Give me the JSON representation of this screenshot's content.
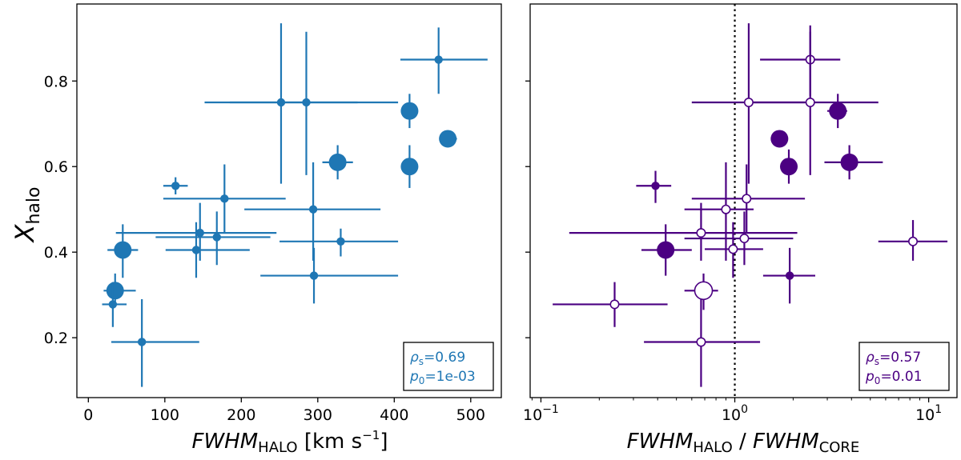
{
  "colors": {
    "left": "#1f77b4",
    "right": "#4b0082",
    "frame": "#000000"
  },
  "chart_data": [
    {
      "type": "scatter",
      "name": "left-panel",
      "xlabel": "FWHM_HALO [km s^-1]",
      "xlabel_main": "FWHM",
      "xlabel_sub": "HALO",
      "xlabel_unit_pre": " [km s",
      "xlabel_unit_sup": "−1",
      "xlabel_unit_post": "]",
      "ylabel": "X_halo",
      "ylabel_main": "X",
      "ylabel_sub": "halo",
      "xscale": "linear",
      "xlim": [
        -15,
        540
      ],
      "ylim": [
        0.06,
        0.98
      ],
      "xticks": [
        0,
        100,
        200,
        300,
        400,
        500
      ],
      "xtick_labels": [
        "0",
        "100",
        "200",
        "300",
        "400",
        "500"
      ],
      "yticks": [
        0.2,
        0.4,
        0.6,
        0.8
      ],
      "ytick_labels": [
        "0.2",
        "0.4",
        "0.6",
        "0.8"
      ],
      "legend_position": "bottom-right",
      "stats": {
        "rho_symbol": "ρ",
        "rho_sub": "s",
        "rho_value": "=0.69",
        "p_symbol": "p",
        "p_sub": "0",
        "p_value": "=1e-03"
      },
      "points": [
        {
          "x": 458,
          "y": 0.85,
          "xlo": 408,
          "xhi": 522,
          "ylo": 0.77,
          "yhi": 0.925,
          "size": "small",
          "fill": true
        },
        {
          "x": 252,
          "y": 0.75,
          "xlo": 152,
          "xhi": 352,
          "ylo": 0.56,
          "yhi": 0.935,
          "size": "small",
          "fill": true
        },
        {
          "x": 285,
          "y": 0.75,
          "xlo": 185,
          "xhi": 405,
          "ylo": 0.58,
          "yhi": 0.915,
          "size": "small",
          "fill": true
        },
        {
          "x": 420,
          "y": 0.73,
          "xlo": 410,
          "xhi": 430,
          "ylo": 0.69,
          "yhi": 0.77,
          "size": "large",
          "fill": true
        },
        {
          "x": 470,
          "y": 0.665,
          "xlo": 460,
          "xhi": 482,
          "ylo": 0.655,
          "yhi": 0.675,
          "size": "large",
          "fill": true
        },
        {
          "x": 326,
          "y": 0.61,
          "xlo": 306,
          "xhi": 346,
          "ylo": 0.57,
          "yhi": 0.65,
          "size": "large",
          "fill": true
        },
        {
          "x": 420,
          "y": 0.6,
          "xlo": 410,
          "xhi": 430,
          "ylo": 0.55,
          "yhi": 0.65,
          "size": "large",
          "fill": true
        },
        {
          "x": 114,
          "y": 0.555,
          "xlo": 98,
          "xhi": 130,
          "ylo": 0.535,
          "yhi": 0.575,
          "size": "small",
          "fill": true
        },
        {
          "x": 178,
          "y": 0.525,
          "xlo": 98,
          "xhi": 258,
          "ylo": 0.445,
          "yhi": 0.605,
          "size": "small",
          "fill": true
        },
        {
          "x": 294,
          "y": 0.5,
          "xlo": 204,
          "xhi": 382,
          "ylo": 0.38,
          "yhi": 0.61,
          "size": "small",
          "fill": true
        },
        {
          "x": 146,
          "y": 0.445,
          "xlo": 36,
          "xhi": 246,
          "ylo": 0.38,
          "yhi": 0.515,
          "size": "small",
          "fill": true
        },
        {
          "x": 168,
          "y": 0.435,
          "xlo": 88,
          "xhi": 238,
          "ylo": 0.37,
          "yhi": 0.495,
          "size": "small",
          "fill": true
        },
        {
          "x": 330,
          "y": 0.425,
          "xlo": 250,
          "xhi": 405,
          "ylo": 0.39,
          "yhi": 0.455,
          "size": "small",
          "fill": true
        },
        {
          "x": 141,
          "y": 0.405,
          "xlo": 101,
          "xhi": 211,
          "ylo": 0.34,
          "yhi": 0.47,
          "size": "small",
          "fill": true
        },
        {
          "x": 45,
          "y": 0.405,
          "xlo": 25,
          "xhi": 65,
          "ylo": 0.34,
          "yhi": 0.465,
          "size": "large",
          "fill": true
        },
        {
          "x": 295,
          "y": 0.345,
          "xlo": 225,
          "xhi": 405,
          "ylo": 0.28,
          "yhi": 0.41,
          "size": "small",
          "fill": true
        },
        {
          "x": 35,
          "y": 0.31,
          "xlo": 20,
          "xhi": 62,
          "ylo": 0.28,
          "yhi": 0.35,
          "size": "large",
          "fill": true
        },
        {
          "x": 32,
          "y": 0.278,
          "xlo": 18,
          "xhi": 50,
          "ylo": 0.225,
          "yhi": 0.33,
          "size": "small",
          "fill": true
        },
        {
          "x": 70,
          "y": 0.19,
          "xlo": 30,
          "xhi": 145,
          "ylo": 0.085,
          "yhi": 0.29,
          "size": "small",
          "fill": true
        }
      ]
    },
    {
      "type": "scatter",
      "name": "right-panel",
      "xlabel": "FWHM_HALO / FWHM_CORE",
      "xlabel_main1": "FWHM",
      "xlabel_sub1": "HALO",
      "xlabel_mid": " / ",
      "xlabel_main2": "FWHM",
      "xlabel_sub2": "CORE",
      "xscale": "log",
      "xlim": [
        0.088,
        14
      ],
      "ylim": [
        0.06,
        0.98
      ],
      "xticks": [
        0.1,
        1,
        10
      ],
      "xtick_labels": [
        {
          "base": "10",
          "exp": "−1"
        },
        {
          "base": "10",
          "exp": "0"
        },
        {
          "base": "10",
          "exp": "1"
        }
      ],
      "yticks": [
        0.2,
        0.4,
        0.6,
        0.8
      ],
      "vline": 1,
      "legend_position": "bottom-right",
      "stats": {
        "rho_symbol": "ρ",
        "rho_sub": "s",
        "rho_value": "=0.57",
        "p_symbol": "p",
        "p_sub": "0",
        "p_value": "=0.01"
      },
      "points": [
        {
          "x": 2.45,
          "y": 0.85,
          "xlo": 1.35,
          "xhi": 3.5,
          "ylo": 0.765,
          "yhi": 0.93,
          "size": "small",
          "fill": false
        },
        {
          "x": 1.18,
          "y": 0.75,
          "xlo": 0.6,
          "xhi": 2.3,
          "ylo": 0.56,
          "yhi": 0.935,
          "size": "small",
          "fill": false
        },
        {
          "x": 2.45,
          "y": 0.75,
          "xlo": 1.25,
          "xhi": 5.5,
          "ylo": 0.58,
          "yhi": 0.915,
          "size": "small",
          "fill": false
        },
        {
          "x": 3.4,
          "y": 0.73,
          "xlo": 3.0,
          "xhi": 3.8,
          "ylo": 0.69,
          "yhi": 0.77,
          "size": "large",
          "fill": true
        },
        {
          "x": 1.7,
          "y": 0.665,
          "xlo": 1.65,
          "xhi": 1.75,
          "ylo": 0.655,
          "yhi": 0.675,
          "size": "large",
          "fill": true
        },
        {
          "x": 3.9,
          "y": 0.61,
          "xlo": 2.9,
          "xhi": 5.8,
          "ylo": 0.57,
          "yhi": 0.65,
          "size": "large",
          "fill": true
        },
        {
          "x": 1.9,
          "y": 0.6,
          "xlo": 1.8,
          "xhi": 2.0,
          "ylo": 0.56,
          "yhi": 0.64,
          "size": "large",
          "fill": true
        },
        {
          "x": 0.39,
          "y": 0.555,
          "xlo": 0.31,
          "xhi": 0.47,
          "ylo": 0.515,
          "yhi": 0.59,
          "size": "small",
          "fill": true
        },
        {
          "x": 1.15,
          "y": 0.525,
          "xlo": 0.6,
          "xhi": 2.3,
          "ylo": 0.445,
          "yhi": 0.605,
          "size": "small",
          "fill": false
        },
        {
          "x": 0.9,
          "y": 0.5,
          "xlo": 0.55,
          "xhi": 1.25,
          "ylo": 0.38,
          "yhi": 0.61,
          "size": "small",
          "fill": false
        },
        {
          "x": 0.67,
          "y": 0.445,
          "xlo": 0.14,
          "xhi": 2.1,
          "ylo": 0.38,
          "yhi": 0.515,
          "size": "small",
          "fill": false
        },
        {
          "x": 1.12,
          "y": 0.432,
          "xlo": 0.55,
          "xhi": 2.0,
          "ylo": 0.37,
          "yhi": 0.495,
          "size": "small",
          "fill": false
        },
        {
          "x": 8.3,
          "y": 0.425,
          "xlo": 5.5,
          "xhi": 12.5,
          "ylo": 0.38,
          "yhi": 0.475,
          "size": "small",
          "fill": false
        },
        {
          "x": 0.98,
          "y": 0.407,
          "xlo": 0.7,
          "xhi": 1.4,
          "ylo": 0.34,
          "yhi": 0.47,
          "size": "small",
          "fill": false
        },
        {
          "x": 0.44,
          "y": 0.405,
          "xlo": 0.33,
          "xhi": 0.6,
          "ylo": 0.345,
          "yhi": 0.465,
          "size": "large",
          "fill": true
        },
        {
          "x": 1.92,
          "y": 0.345,
          "xlo": 1.4,
          "xhi": 2.6,
          "ylo": 0.28,
          "yhi": 0.41,
          "size": "small",
          "fill": true
        },
        {
          "x": 0.69,
          "y": 0.31,
          "xlo": 0.55,
          "xhi": 0.82,
          "ylo": 0.265,
          "yhi": 0.35,
          "size": "large",
          "fill": false
        },
        {
          "x": 0.24,
          "y": 0.278,
          "xlo": 0.115,
          "xhi": 0.45,
          "ylo": 0.225,
          "yhi": 0.33,
          "size": "small",
          "fill": false
        },
        {
          "x": 0.67,
          "y": 0.19,
          "xlo": 0.34,
          "xhi": 1.35,
          "ylo": 0.085,
          "yhi": 0.29,
          "size": "small",
          "fill": false
        }
      ]
    }
  ]
}
